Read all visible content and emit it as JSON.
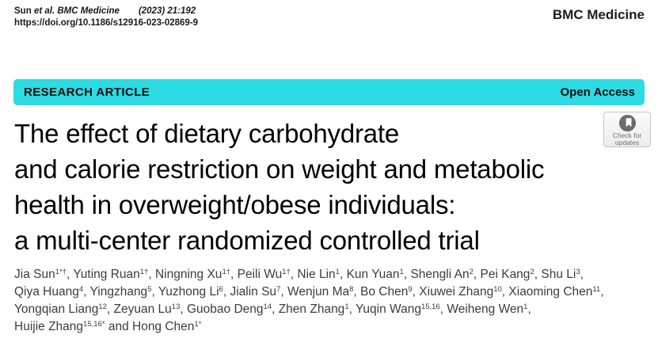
{
  "header": {
    "citation_author": "Sun",
    "citation_journal": "et al. BMC Medicine",
    "citation_ref": "(2023) 21:192",
    "doi": "https://doi.org/10.1186/s12916-023-02869-9",
    "journal_name": "BMC Medicine"
  },
  "banner": {
    "label": "RESEARCH ARTICLE",
    "access_label": "Open Access",
    "background_color": "#2bdce4",
    "text_color": "#0c0c0c"
  },
  "update_badge": {
    "line1": "Check for",
    "line2": "updates",
    "icon": "crossmark-bookmark-circle-icon",
    "icon_color": "#6d6c6c"
  },
  "title": {
    "lines": [
      "The effect of dietary carbohydrate",
      "and calorie restriction on weight and metabolic",
      "health in overweight/obese individuals:",
      "a multi-center randomized controlled trial"
    ]
  },
  "authors": {
    "conjunction": "and",
    "text_color": "#3c3c3c",
    "list": [
      {
        "name": "Jia Sun",
        "sup": "1*†"
      },
      {
        "name": "Yuting Ruan",
        "sup": "1†"
      },
      {
        "name": "Ningning Xu",
        "sup": "1†"
      },
      {
        "name": "Peili Wu",
        "sup": "1†"
      },
      {
        "name": "Nie Lin",
        "sup": "1"
      },
      {
        "name": "Kun Yuan",
        "sup": "1"
      },
      {
        "name": "Shengli An",
        "sup": "2"
      },
      {
        "name": "Pei Kang",
        "sup": "2"
      },
      {
        "name": "Shu Li",
        "sup": "3",
        "break_after": true
      },
      {
        "name": "Qiya Huang",
        "sup": "4"
      },
      {
        "name": "Yingzhang",
        "sup": "5"
      },
      {
        "name": "Yuzhong Li",
        "sup": "6"
      },
      {
        "name": "Jialin Su",
        "sup": "7"
      },
      {
        "name": "Wenjun Ma",
        "sup": "8"
      },
      {
        "name": "Bo Chen",
        "sup": "9"
      },
      {
        "name": "Xiuwei Zhang",
        "sup": "10"
      },
      {
        "name": "Xiaoming Chen",
        "sup": "11",
        "break_after": true
      },
      {
        "name": "Yongqian Liang",
        "sup": "12"
      },
      {
        "name": "Zeyuan Lu",
        "sup": "13"
      },
      {
        "name": "Guobao Deng",
        "sup": "14"
      },
      {
        "name": "Zhen Zhang",
        "sup": "1"
      },
      {
        "name": "Yuqin Wang",
        "sup": "15,16"
      },
      {
        "name": "Weiheng Wen",
        "sup": "1",
        "break_after": true
      },
      {
        "name": "Huijie Zhang",
        "sup": "15,16*"
      },
      {
        "name": "Hong Chen",
        "sup": "1*"
      }
    ]
  }
}
